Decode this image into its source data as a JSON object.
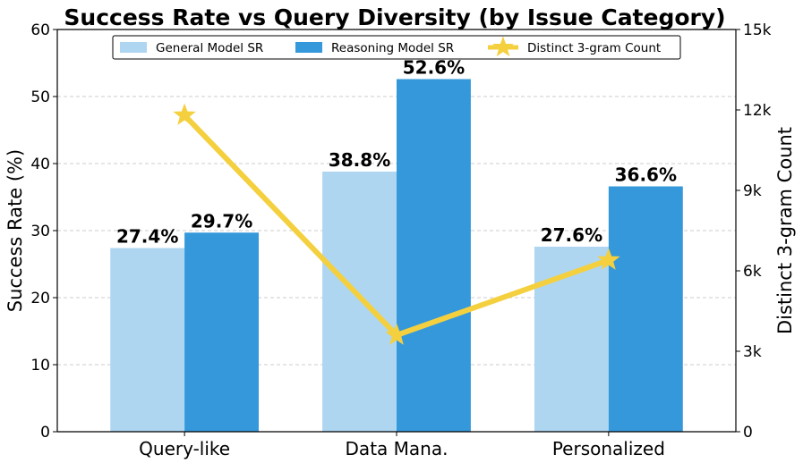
{
  "chart_data": {
    "type": "bar",
    "title": "Success Rate vs Query Diversity (by Issue Category)",
    "categories": [
      "Query-like",
      "Data Mana.",
      "Personalized"
    ],
    "ylabel": "Success Rate (%)",
    "ylim": [
      0,
      60
    ],
    "yticks": [
      0,
      10,
      20,
      30,
      40,
      50,
      60
    ],
    "y2label": "Distinct 3-gram Count",
    "y2lim": [
      0,
      15000
    ],
    "y2ticks": [
      0,
      3000,
      6000,
      9000,
      12000,
      15000
    ],
    "y2ticklabels": [
      "0",
      "3k",
      "6k",
      "9k",
      "12k",
      "15k"
    ],
    "grid": true,
    "legend_position": "top-center",
    "series": [
      {
        "name": "General Model SR",
        "type": "bar",
        "color": "#aed6f1",
        "values": [
          27.4,
          38.8,
          27.6
        ],
        "labels": [
          "27.4%",
          "38.8%",
          "27.6%"
        ]
      },
      {
        "name": "Reasoning Model SR",
        "type": "bar",
        "color": "#3498db",
        "values": [
          29.7,
          52.6,
          36.6
        ],
        "labels": [
          "29.7%",
          "52.6%",
          "36.6%"
        ]
      },
      {
        "name": "Distinct 3-gram Count",
        "type": "line",
        "axis": "right",
        "marker": "star",
        "color": "#f4d03f",
        "values": [
          11800,
          3600,
          6400
        ]
      }
    ]
  }
}
